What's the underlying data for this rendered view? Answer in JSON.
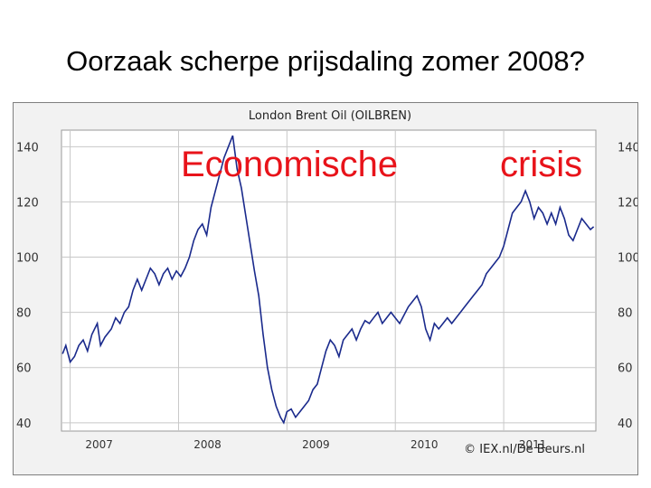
{
  "slide": {
    "title": "Oorzaak scherpe prijsdaling zomer 2008?",
    "overlay_left": "Economische",
    "overlay_right": "crisis"
  },
  "credit": "© IEX.nl/De Beurs.nl",
  "colors": {
    "series": "#1a2a8c",
    "overlay": "#e8131a",
    "grid": "#ffffff",
    "plot_bg": "#ffffff"
  },
  "chart_data": {
    "type": "line",
    "title": "London Brent Oil (OILBREN)",
    "xlabel": "",
    "ylabel": "",
    "ylim": [
      37,
      146
    ],
    "xlim": [
      2006.92,
      2011.85
    ],
    "yticks": [
      "40",
      "60",
      "80",
      "100",
      "120",
      "140"
    ],
    "ytick_values": [
      40,
      60,
      80,
      100,
      120,
      140
    ],
    "xticks": [
      "2007",
      "2008",
      "2009",
      "2010",
      "2011"
    ],
    "xtick_values": [
      2007.0,
      2008.0,
      2009.0,
      2010.0,
      2011.0
    ],
    "grid": true,
    "series": [
      {
        "name": "",
        "points": [
          [
            2006.93,
            65
          ],
          [
            2006.96,
            68
          ],
          [
            2007.0,
            62
          ],
          [
            2007.04,
            64
          ],
          [
            2007.08,
            68
          ],
          [
            2007.12,
            70
          ],
          [
            2007.16,
            66
          ],
          [
            2007.2,
            72
          ],
          [
            2007.25,
            76
          ],
          [
            2007.28,
            68
          ],
          [
            2007.32,
            71
          ],
          [
            2007.38,
            74
          ],
          [
            2007.42,
            78
          ],
          [
            2007.46,
            76
          ],
          [
            2007.5,
            80
          ],
          [
            2007.54,
            82
          ],
          [
            2007.58,
            88
          ],
          [
            2007.62,
            92
          ],
          [
            2007.66,
            88
          ],
          [
            2007.7,
            92
          ],
          [
            2007.74,
            96
          ],
          [
            2007.78,
            94
          ],
          [
            2007.82,
            90
          ],
          [
            2007.86,
            94
          ],
          [
            2007.9,
            96
          ],
          [
            2007.94,
            92
          ],
          [
            2007.98,
            95
          ],
          [
            2008.02,
            93
          ],
          [
            2008.06,
            96
          ],
          [
            2008.1,
            100
          ],
          [
            2008.14,
            106
          ],
          [
            2008.18,
            110
          ],
          [
            2008.22,
            112
          ],
          [
            2008.26,
            108
          ],
          [
            2008.3,
            118
          ],
          [
            2008.34,
            124
          ],
          [
            2008.38,
            130
          ],
          [
            2008.42,
            136
          ],
          [
            2008.46,
            140
          ],
          [
            2008.5,
            144
          ],
          [
            2008.54,
            132
          ],
          [
            2008.58,
            125
          ],
          [
            2008.62,
            115
          ],
          [
            2008.66,
            105
          ],
          [
            2008.7,
            95
          ],
          [
            2008.74,
            86
          ],
          [
            2008.78,
            72
          ],
          [
            2008.82,
            60
          ],
          [
            2008.86,
            52
          ],
          [
            2008.9,
            46
          ],
          [
            2008.94,
            42
          ],
          [
            2008.97,
            40
          ],
          [
            2009.0,
            44
          ],
          [
            2009.04,
            45
          ],
          [
            2009.08,
            42
          ],
          [
            2009.12,
            44
          ],
          [
            2009.16,
            46
          ],
          [
            2009.2,
            48
          ],
          [
            2009.24,
            52
          ],
          [
            2009.28,
            54
          ],
          [
            2009.32,
            60
          ],
          [
            2009.36,
            66
          ],
          [
            2009.4,
            70
          ],
          [
            2009.44,
            68
          ],
          [
            2009.48,
            64
          ],
          [
            2009.52,
            70
          ],
          [
            2009.56,
            72
          ],
          [
            2009.6,
            74
          ],
          [
            2009.64,
            70
          ],
          [
            2009.68,
            74
          ],
          [
            2009.72,
            77
          ],
          [
            2009.76,
            76
          ],
          [
            2009.8,
            78
          ],
          [
            2009.84,
            80
          ],
          [
            2009.88,
            76
          ],
          [
            2009.92,
            78
          ],
          [
            2009.96,
            80
          ],
          [
            2010.0,
            78
          ],
          [
            2010.04,
            76
          ],
          [
            2010.08,
            79
          ],
          [
            2010.12,
            82
          ],
          [
            2010.16,
            84
          ],
          [
            2010.2,
            86
          ],
          [
            2010.24,
            82
          ],
          [
            2010.28,
            74
          ],
          [
            2010.32,
            70
          ],
          [
            2010.36,
            76
          ],
          [
            2010.4,
            74
          ],
          [
            2010.44,
            76
          ],
          [
            2010.48,
            78
          ],
          [
            2010.52,
            76
          ],
          [
            2010.56,
            78
          ],
          [
            2010.6,
            80
          ],
          [
            2010.64,
            82
          ],
          [
            2010.68,
            84
          ],
          [
            2010.72,
            86
          ],
          [
            2010.76,
            88
          ],
          [
            2010.8,
            90
          ],
          [
            2010.84,
            94
          ],
          [
            2010.88,
            96
          ],
          [
            2010.92,
            98
          ],
          [
            2010.96,
            100
          ],
          [
            2011.0,
            104
          ],
          [
            2011.04,
            110
          ],
          [
            2011.08,
            116
          ],
          [
            2011.12,
            118
          ],
          [
            2011.16,
            120
          ],
          [
            2011.2,
            124
          ],
          [
            2011.24,
            120
          ],
          [
            2011.28,
            114
          ],
          [
            2011.32,
            118
          ],
          [
            2011.36,
            116
          ],
          [
            2011.4,
            112
          ],
          [
            2011.44,
            116
          ],
          [
            2011.48,
            112
          ],
          [
            2011.52,
            118
          ],
          [
            2011.56,
            114
          ],
          [
            2011.6,
            108
          ],
          [
            2011.64,
            106
          ],
          [
            2011.68,
            110
          ],
          [
            2011.72,
            114
          ],
          [
            2011.76,
            112
          ],
          [
            2011.8,
            110
          ],
          [
            2011.83,
            111
          ]
        ]
      }
    ]
  }
}
